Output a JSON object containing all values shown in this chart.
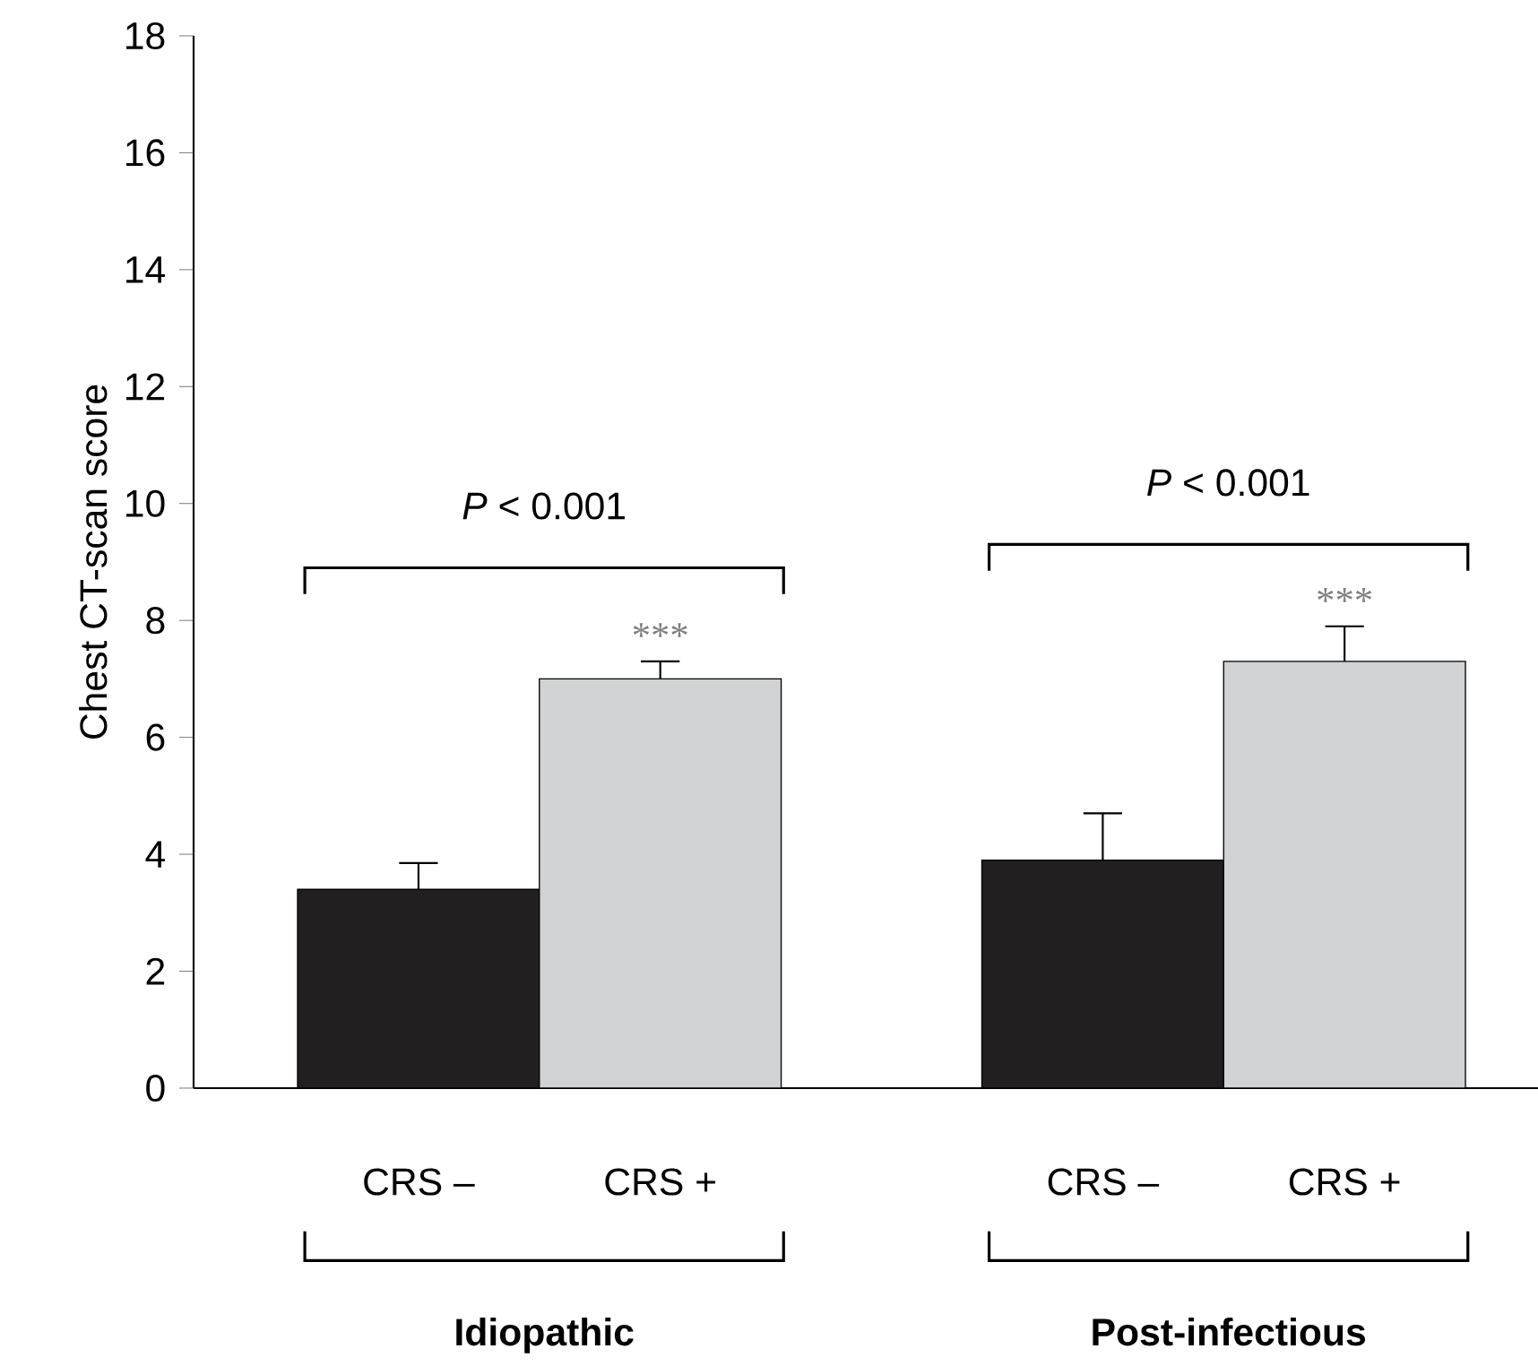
{
  "chart_data": {
    "type": "bar",
    "ylabel": "Chest CT-scan score",
    "categories": [
      "CRS –",
      "CRS +",
      "CRS –",
      "CRS  +"
    ],
    "values": [
      3.4,
      7.0,
      3.9,
      7.3
    ],
    "errors": [
      [
        3.4,
        3.85
      ],
      [
        7.0,
        7.3
      ],
      [
        3.9,
        4.7
      ],
      [
        7.3,
        7.9
      ]
    ],
    "colors": [
      "#231f20",
      "#d1d2d4",
      "#231f20",
      "#d1d2d4"
    ],
    "ylim": [
      0,
      18
    ],
    "yticks": [
      0,
      2,
      4,
      6,
      8,
      10,
      12,
      14,
      16,
      18
    ],
    "grid": false,
    "annotations": [
      "*P* < 0.001",
      "*P* < 0.001",
      {
        "text": "***",
        "x": "CRS +",
        "y": 7.3
      },
      {
        "text": "***",
        "x": "CRS  +",
        "y": 7.9
      },
      "Idiopathic",
      "Post-infectious"
    ]
  }
}
